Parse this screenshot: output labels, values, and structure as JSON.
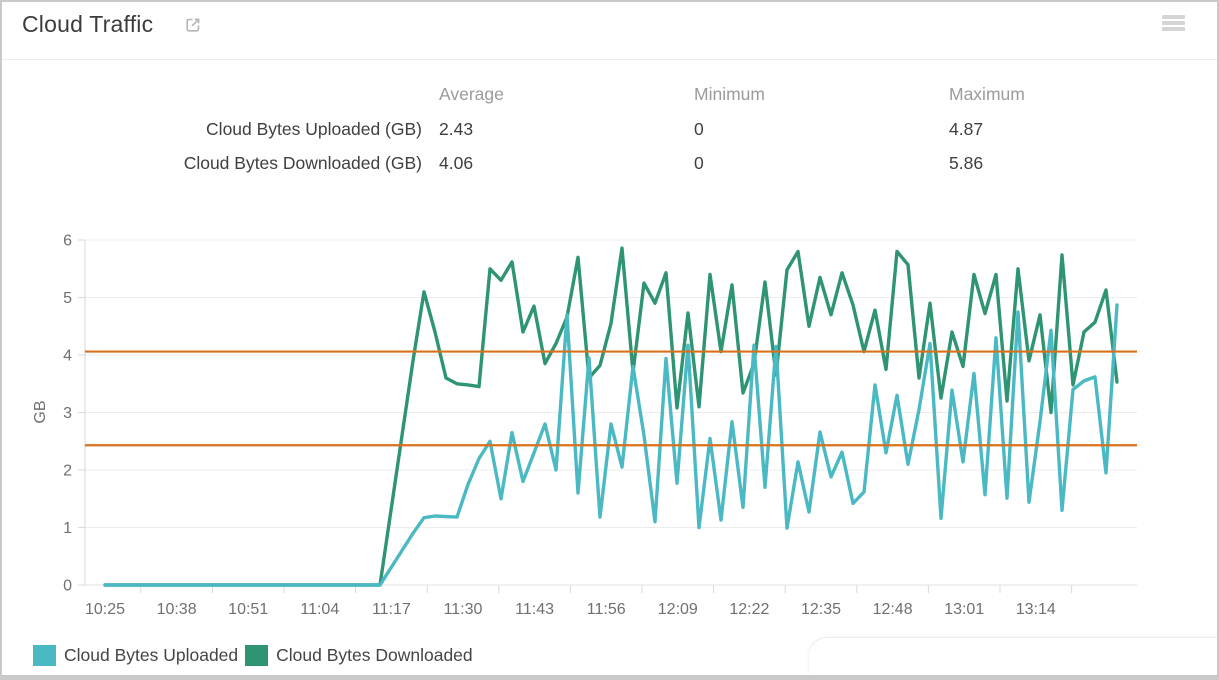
{
  "header": {
    "title": "Cloud Traffic",
    "icons": {
      "external_link": "open-in-new-window-icon",
      "menu": "hamburger-menu-icon"
    }
  },
  "stats": {
    "columns": [
      "Average",
      "Minimum",
      "Maximum"
    ],
    "rows": [
      {
        "label": "Cloud Bytes Uploaded (GB)",
        "average": "2.43",
        "minimum": "0",
        "maximum": "4.87"
      },
      {
        "label": "Cloud Bytes Downloaded (GB)",
        "average": "4.06",
        "minimum": "0",
        "maximum": "5.86"
      }
    ]
  },
  "legend": {
    "items": [
      {
        "label": "Cloud Bytes Uploaded",
        "color": "#4BB9C4"
      },
      {
        "label": "Cloud Bytes Downloaded",
        "color": "#2E9474"
      }
    ]
  },
  "chart_data": {
    "type": "line",
    "title": "Cloud Traffic",
    "xlabel": "",
    "ylabel": "GB",
    "ylim": [
      0,
      6
    ],
    "yticks": [
      0,
      1,
      2,
      3,
      4,
      5,
      6
    ],
    "grid": true,
    "legend_position": "bottom-left",
    "x_axis_labels": [
      "10:25",
      "10:38",
      "10:51",
      "11:04",
      "11:17",
      "11:30",
      "11:43",
      "11:56",
      "12:09",
      "12:22",
      "12:35",
      "12:48",
      "13:01",
      "13:14"
    ],
    "x_times": [
      "10:25",
      "10:27",
      "10:29",
      "10:31",
      "10:33",
      "10:35",
      "10:37",
      "10:39",
      "10:41",
      "10:43",
      "10:45",
      "10:47",
      "10:49",
      "10:51",
      "10:53",
      "10:55",
      "10:57",
      "10:59",
      "11:01",
      "11:03",
      "11:05",
      "11:07",
      "11:09",
      "11:11",
      "11:13",
      "11:15",
      "11:17",
      "11:19",
      "11:21",
      "11:23",
      "11:25",
      "11:27",
      "11:29",
      "11:31",
      "11:33",
      "11:35",
      "11:37",
      "11:39",
      "11:41",
      "11:43",
      "11:45",
      "11:47",
      "11:49",
      "11:51",
      "11:53",
      "11:55",
      "11:57",
      "11:59",
      "12:01",
      "12:03",
      "12:05",
      "12:07",
      "12:09",
      "12:11",
      "12:13",
      "12:15",
      "12:17",
      "12:19",
      "12:21",
      "12:23",
      "12:25",
      "12:27",
      "12:29",
      "12:31",
      "12:33",
      "12:35",
      "12:37",
      "12:39",
      "12:41",
      "12:43",
      "12:45",
      "12:47",
      "12:49",
      "12:51",
      "12:53",
      "12:55",
      "12:57",
      "12:59",
      "13:01",
      "13:03",
      "13:05",
      "13:07",
      "13:09",
      "13:11",
      "13:13",
      "13:15",
      "13:17",
      "13:19",
      "13:21",
      "13:23",
      "13:25",
      "13:27",
      "13:29"
    ],
    "series": [
      {
        "name": "Cloud Bytes Uploaded",
        "color": "#4BB9C4",
        "values": [
          0,
          0,
          0,
          0,
          0,
          0,
          0,
          0,
          0,
          0,
          0,
          0,
          0,
          0,
          0,
          0,
          0,
          0,
          0,
          0,
          0,
          0,
          0,
          0,
          0,
          0,
          0.3,
          0.6,
          0.9,
          1.17,
          1.2,
          1.19,
          1.18,
          1.75,
          2.2,
          2.5,
          1.5,
          2.65,
          1.8,
          2.3,
          2.8,
          2.0,
          4.7,
          1.6,
          3.95,
          1.18,
          2.8,
          2.05,
          3.8,
          2.6,
          1.1,
          3.94,
          1.77,
          4.17,
          1.0,
          2.55,
          1.13,
          2.84,
          1.35,
          4.17,
          1.7,
          4.15,
          0.99,
          2.14,
          1.27,
          2.66,
          1.88,
          2.31,
          1.42,
          1.62,
          3.48,
          2.3,
          3.3,
          2.1,
          3.05,
          4.2,
          1.16,
          3.39,
          2.14,
          3.68,
          1.57,
          4.3,
          1.51,
          4.75,
          1.44,
          2.84,
          4.43,
          1.3,
          3.4,
          3.55,
          3.62,
          1.95,
          4.87
        ]
      },
      {
        "name": "Cloud Bytes Downloaded",
        "color": "#2E9474",
        "values": [
          0,
          0,
          0,
          0,
          0,
          0,
          0,
          0,
          0,
          0,
          0,
          0,
          0,
          0,
          0,
          0,
          0,
          0,
          0,
          0,
          0,
          0,
          0,
          0,
          0,
          0,
          1.3,
          2.6,
          3.9,
          5.1,
          4.4,
          3.6,
          3.5,
          3.48,
          3.45,
          5.5,
          5.3,
          5.62,
          4.4,
          4.85,
          3.85,
          4.2,
          4.66,
          5.7,
          3.6,
          3.82,
          4.55,
          5.86,
          3.7,
          5.25,
          4.9,
          5.43,
          3.08,
          4.73,
          3.1,
          5.4,
          4.06,
          5.22,
          3.34,
          3.85,
          5.27,
          3.65,
          5.48,
          5.8,
          4.5,
          5.35,
          4.7,
          5.43,
          4.87,
          4.06,
          4.78,
          3.75,
          5.8,
          5.57,
          3.6,
          4.9,
          3.25,
          4.4,
          3.8,
          5.4,
          4.72,
          5.4,
          3.2,
          5.5,
          3.9,
          4.7,
          3.0,
          5.74,
          3.48,
          4.4,
          4.57,
          5.13,
          3.53
        ]
      }
    ],
    "average_lines": [
      {
        "series": "Cloud Bytes Uploaded",
        "value": 2.43,
        "color": "#D8711C"
      },
      {
        "series": "Cloud Bytes Downloaded",
        "value": 4.06,
        "color": "#D8711C"
      }
    ]
  }
}
